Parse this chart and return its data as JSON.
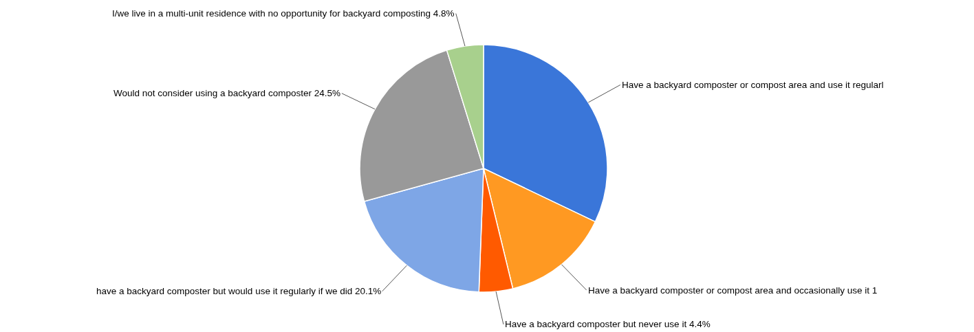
{
  "chart_data": {
    "type": "pie",
    "categories": [
      "Have a backyard composter or compost area and use it regularl",
      "Have a backyard composter or compost area and occasionally use it 1",
      "Have a backyard composter but never use it 4.4%",
      "have a backyard composter but would use it regularly if we did 20.1%",
      "Would not consider using a backyard composter 24.5%",
      "I/we live in a multi-unit residence with no opportunity for backyard composting 4.8%"
    ],
    "values": [
      32.1,
      14.1,
      4.4,
      20.1,
      24.5,
      4.8
    ],
    "colors": [
      "#3a76d9",
      "#ff9922",
      "#ff5a00",
      "#7ea6e6",
      "#999999",
      "#a8d08d"
    ]
  }
}
